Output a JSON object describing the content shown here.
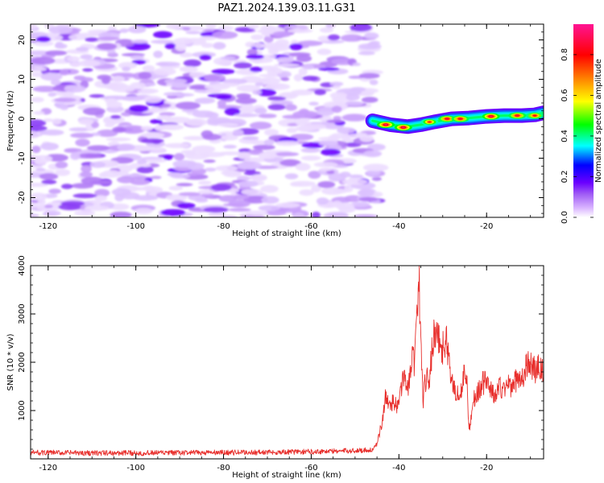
{
  "title": "PAZ1.2024.139.03.11.G31",
  "chart_data": [
    {
      "type": "heatmap",
      "xlabel": "Height of straight line (km)",
      "ylabel": "Frequency (Hz)",
      "xlim": [
        -124,
        -7
      ],
      "ylim": [
        -25,
        24
      ],
      "xticks": [
        -120,
        -100,
        -80,
        -60,
        -40,
        -20
      ],
      "yticks": [
        -20,
        -10,
        0,
        10,
        20
      ],
      "colorbar": {
        "label": "Normalized spectral amplitude",
        "range": [
          0,
          0.95
        ],
        "ticks": [
          0.0,
          0.2,
          0.4,
          0.6,
          0.8
        ],
        "colors": [
          "#ffffff",
          "#d9b3ff",
          "#a05cf5",
          "#6a00ff",
          "#0000ff",
          "#00ffff",
          "#00ff00",
          "#ffff00",
          "#ff8000",
          "#ff0000",
          "#ff1493"
        ]
      },
      "noise_region": {
        "x": [
          -124,
          -45
        ],
        "y": [
          -25,
          24
        ],
        "typical_amplitude": 0.05
      },
      "signal_trace": {
        "description_points": [
          {
            "x": -46,
            "y": -0.5
          },
          {
            "x": -42,
            "y": -1.5
          },
          {
            "x": -38,
            "y": -2.0
          },
          {
            "x": -35,
            "y": -1.5
          },
          {
            "x": -32,
            "y": -0.8
          },
          {
            "x": -28,
            "y": 0.0
          },
          {
            "x": -24,
            "y": 0.2
          },
          {
            "x": -20,
            "y": 0.6
          },
          {
            "x": -16,
            "y": 0.8
          },
          {
            "x": -12,
            "y": 0.8
          },
          {
            "x": -9,
            "y": 1.0
          },
          {
            "x": -7,
            "y": 1.5
          }
        ],
        "peaks": [
          {
            "x": -43,
            "y": -1.5,
            "amplitude": 0.95
          },
          {
            "x": -39,
            "y": -2.2,
            "amplitude": 0.95
          },
          {
            "x": -33,
            "y": -0.8,
            "amplitude": 0.8
          },
          {
            "x": -29,
            "y": 0.0,
            "amplitude": 0.9
          },
          {
            "x": -26,
            "y": 0.0,
            "amplitude": 0.9
          },
          {
            "x": -19,
            "y": 0.6,
            "amplitude": 0.95
          },
          {
            "x": -13,
            "y": 0.8,
            "amplitude": 0.9
          },
          {
            "x": -9,
            "y": 0.8,
            "amplitude": 0.85
          }
        ]
      }
    },
    {
      "type": "line",
      "xlabel": "Height of straight line (km)",
      "ylabel": "SNR (10 * v/v)",
      "xlim": [
        -124,
        -7
      ],
      "ylim": [
        0,
        4000
      ],
      "xticks": [
        -120,
        -100,
        -80,
        -60,
        -40,
        -20
      ],
      "yticks": [
        1000,
        2000,
        3000,
        4000
      ],
      "series": [
        {
          "color": "#e8302d",
          "x": [
            -124,
            -110,
            -100,
            -90,
            -80,
            -70,
            -60,
            -50,
            -46,
            -45,
            -44,
            -43,
            -42,
            -41,
            -40,
            -39,
            -38,
            -37,
            -36.5,
            -36,
            -35.5,
            -35,
            -34.5,
            -34,
            -33,
            -32,
            -31.5,
            -31,
            -30,
            -29,
            -28,
            -27,
            -26,
            -25,
            -24.5,
            -24,
            -23,
            -22,
            -21,
            -20,
            -19,
            -18,
            -17,
            -16,
            -15,
            -14,
            -13,
            -12,
            -11,
            -10,
            -9,
            -8,
            -7
          ],
          "values": [
            130,
            120,
            120,
            125,
            130,
            135,
            150,
            170,
            190,
            300,
            700,
            1300,
            1100,
            1200,
            1050,
            1800,
            1400,
            2200,
            2000,
            2600,
            4000,
            2400,
            1200,
            1600,
            1700,
            2600,
            2800,
            2500,
            2300,
            2400,
            1600,
            1400,
            1300,
            1800,
            1650,
            600,
            1200,
            1400,
            1550,
            1650,
            1400,
            1300,
            1500,
            1400,
            1600,
            1450,
            1700,
            1650,
            1900,
            2000,
            1800,
            2000,
            1700
          ]
        }
      ]
    }
  ]
}
